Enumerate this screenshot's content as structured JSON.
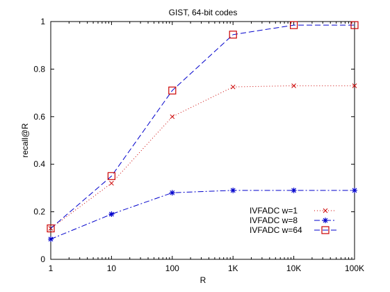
{
  "chart_data": {
    "type": "line",
    "title": "GIST, 64-bit codes",
    "xlabel": "R",
    "ylabel": "recall@R",
    "x_scale": "log",
    "x": [
      1,
      10,
      100,
      1000,
      10000,
      100000
    ],
    "x_tick_labels": [
      "1",
      "10",
      "100",
      "1K",
      "10K",
      "100K"
    ],
    "ylim": [
      0,
      1
    ],
    "y_ticks": [
      0,
      0.2,
      0.4,
      0.6,
      0.8,
      1
    ],
    "y_tick_labels": [
      "0",
      "0.2",
      "0.4",
      "0.6",
      "0.8",
      "1"
    ],
    "grid": false,
    "legend_position": "bottom-right",
    "series": [
      {
        "name": "IVFADC w=1",
        "values": [
          0.13,
          0.32,
          0.6,
          0.725,
          0.73,
          0.73
        ],
        "color": "#cc0000",
        "line_style": "dotted",
        "marker": "x"
      },
      {
        "name": "IVFADC w=8",
        "values": [
          0.085,
          0.19,
          0.28,
          0.29,
          0.29,
          0.29
        ],
        "color": "#0000cc",
        "line_style": "dash-dot",
        "marker": "star"
      },
      {
        "name": "IVFADC w=64",
        "values": [
          0.13,
          0.35,
          0.71,
          0.945,
          0.985,
          0.985
        ],
        "color": "#0000cc",
        "line_style": "dashed",
        "marker": "square",
        "marker_color": "#cc0000"
      }
    ]
  }
}
